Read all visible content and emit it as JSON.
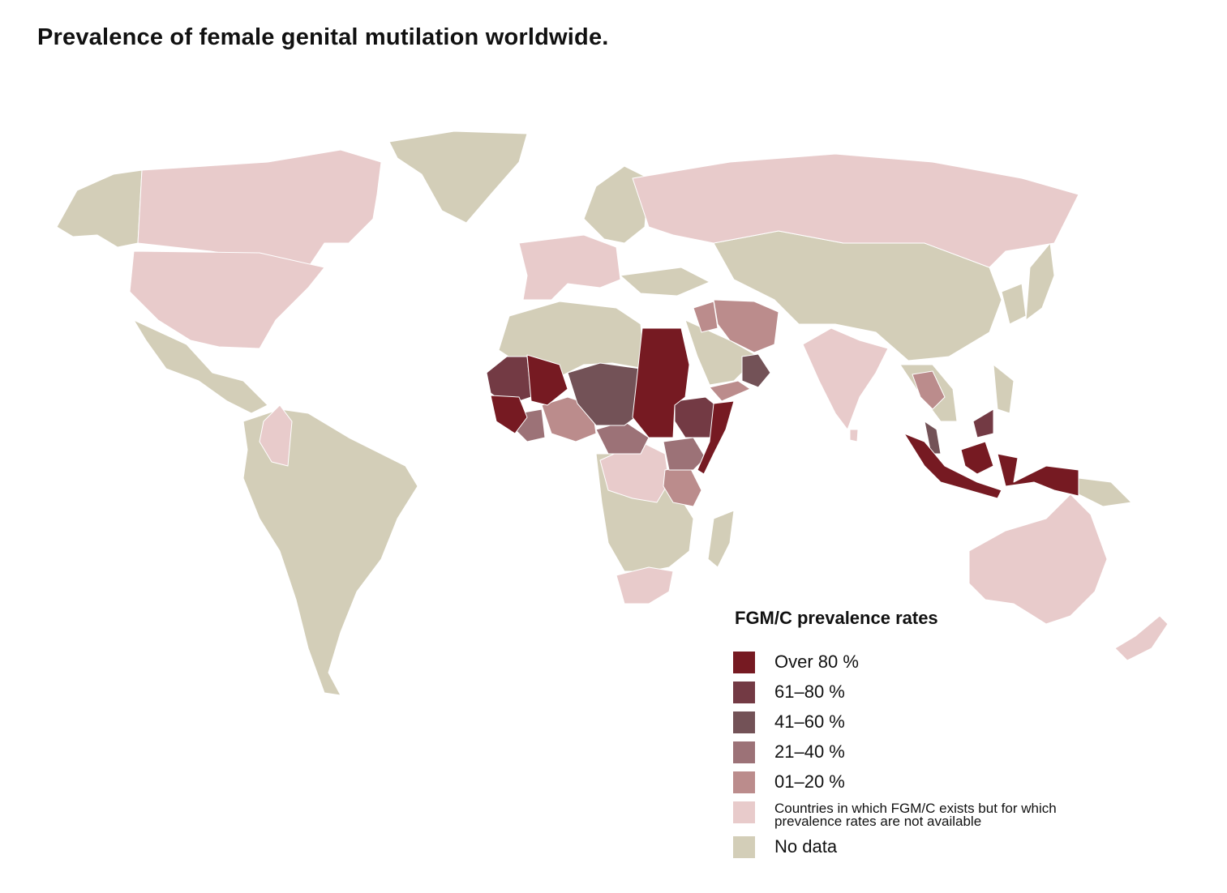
{
  "title": "Prevalence of female genital mutilation worldwide.",
  "colors": {
    "over80": "#761a22",
    "r61_80": "#733a44",
    "r41_60": "#735257",
    "r21_40": "#9c7277",
    "r01_20": "#bb8c8c",
    "exists_no_rate": "#e8cbcb",
    "no_data": "#d3ceb8"
  },
  "legend": {
    "title": "FGM/C prevalence rates",
    "items": [
      {
        "label": "Over 80 %",
        "color": "#761a22"
      },
      {
        "label": "61–80 %",
        "color": "#733a44"
      },
      {
        "label": "41–60 %",
        "color": "#735257"
      },
      {
        "label": "21–40 %",
        "color": "#9c7277"
      },
      {
        "label": "01–20 %",
        "color": "#bb8c8c"
      },
      {
        "label": "Countries in which FGM/C exists but for which prevalence rates are not available",
        "color": "#e8cbcb"
      },
      {
        "label": "No data",
        "color": "#d3ceb8"
      }
    ]
  }
}
